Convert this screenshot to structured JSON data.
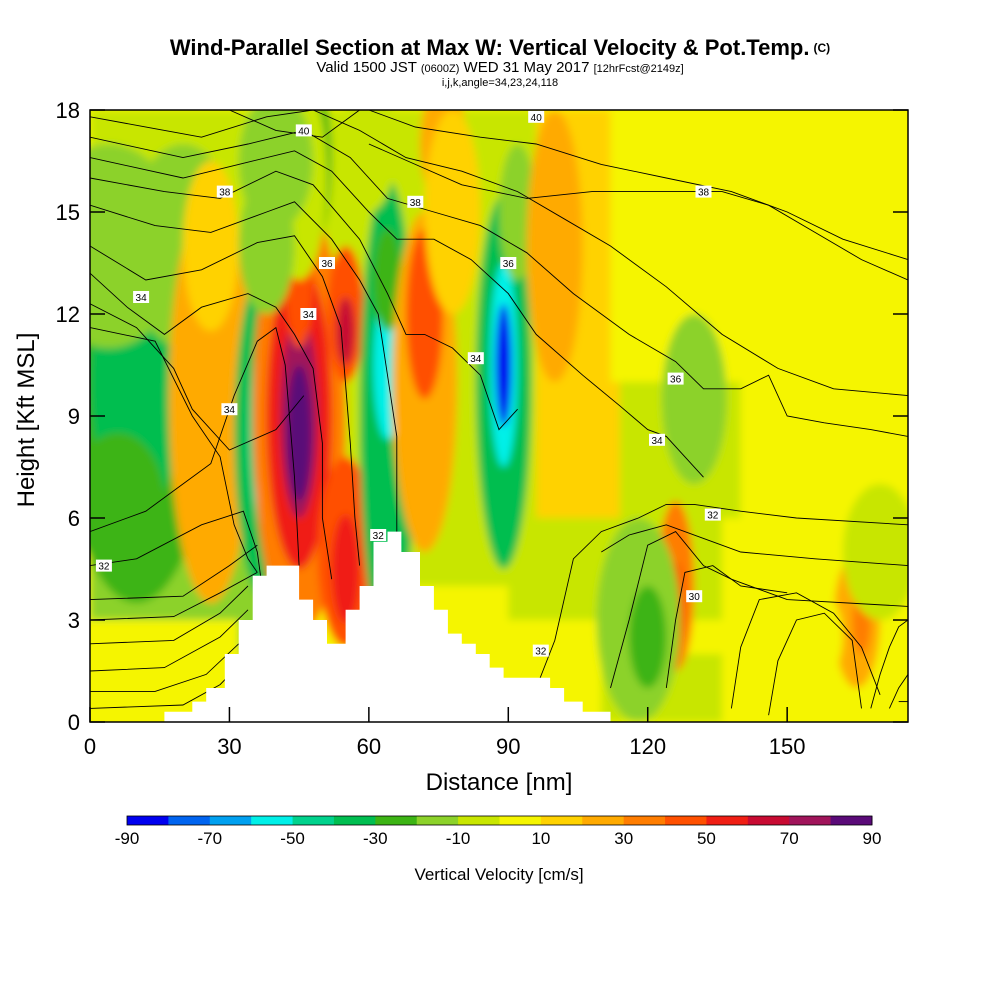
{
  "header": {
    "title": "Wind-Parallel Section at Max W: Vertical Velocity & Pot.Temp.",
    "copyright": "(C)",
    "subtitle_a": "Valid 1500 JST",
    "subtitle_b": "(0600Z)",
    "subtitle_c": "WED 31 May 2017",
    "subtitle_d": "[12hrFcst@2149z]",
    "subtitle2": "i,j,k,angle=34,23,24,118"
  },
  "chart_data": {
    "type": "heatmap",
    "title": "Wind-Parallel Section at Max W: Vertical Velocity & Pot.Temp.",
    "xlabel": "Distance [nm]",
    "ylabel": "Height [Kft MSL]",
    "xlim": [
      0,
      176
    ],
    "ylim": [
      0,
      18
    ],
    "xticks": [
      "0",
      "30",
      "60",
      "90",
      "120",
      "150"
    ],
    "yticks": [
      "0",
      "3",
      "6",
      "9",
      "12",
      "15",
      "18"
    ],
    "colorbar": {
      "title": "Vertical Velocity [cm/s]",
      "tick_labels": [
        "-90",
        "-70",
        "-50",
        "-30",
        "-10",
        "10",
        "30",
        "50",
        "70",
        "90"
      ],
      "levels": [
        -90,
        -80,
        -70,
        -60,
        -50,
        -40,
        -30,
        -20,
        -10,
        0,
        10,
        20,
        30,
        40,
        50,
        60,
        70,
        80,
        90
      ],
      "colors": [
        "#0000f0",
        "#0064f0",
        "#00a0f0",
        "#00f0e8",
        "#00d28c",
        "#00be50",
        "#3cb414",
        "#8cd22a",
        "#c8e600",
        "#f5f500",
        "#ffd200",
        "#ffaa00",
        "#ff7d00",
        "#ff5000",
        "#f01e14",
        "#c80a32",
        "#a0145a",
        "#5a0a78"
      ]
    },
    "contour_labels": [
      "30",
      "32",
      "34",
      "36",
      "38",
      "40"
    ],
    "terrain_profile": {
      "x": [
        16,
        16,
        22,
        22,
        25,
        25,
        29,
        29,
        32,
        32,
        35,
        35,
        38,
        38,
        45,
        45,
        48,
        48,
        51,
        51,
        55,
        55,
        58,
        58,
        61,
        61,
        64,
        64,
        67,
        67,
        71,
        71,
        74,
        74,
        77,
        77,
        80,
        80,
        83,
        83,
        86,
        86,
        89,
        89,
        99,
        99,
        102,
        102,
        106,
        106,
        112,
        112,
        118
      ],
      "height_kft": [
        0,
        0.3,
        0.3,
        0.6,
        0.6,
        1.0,
        1.0,
        2.0,
        2.0,
        3.0,
        3.0,
        4.3,
        4.3,
        4.6,
        4.6,
        3.6,
        3.6,
        3.0,
        3.0,
        2.3,
        2.3,
        3.3,
        3.3,
        4.0,
        4.0,
        5.3,
        5.3,
        5.6,
        5.6,
        5.0,
        5.0,
        4.0,
        4.0,
        3.3,
        3.3,
        2.6,
        2.6,
        2.3,
        2.3,
        2.0,
        2.0,
        1.6,
        1.6,
        1.3,
        1.3,
        1.0,
        1.0,
        0.6,
        0.6,
        0.3,
        0.3,
        0,
        0
      ]
    }
  }
}
